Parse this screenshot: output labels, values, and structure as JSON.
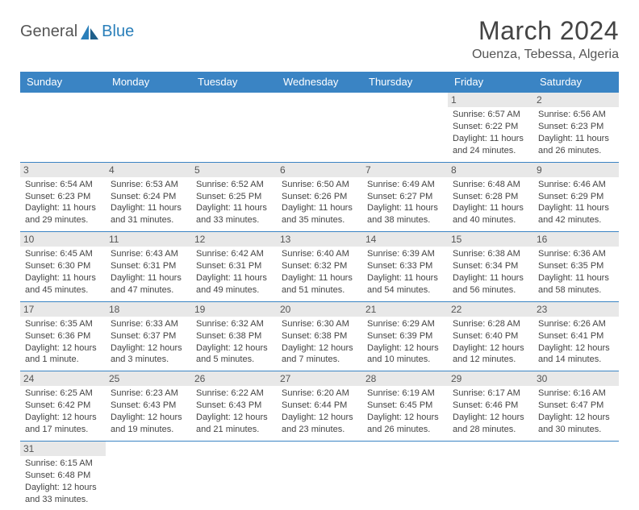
{
  "logo": {
    "general": "General",
    "blue": "Blue"
  },
  "title": "March 2024",
  "location": "Ouenza, Tebessa, Algeria",
  "colors": {
    "header_bg": "#3a84c4",
    "header_text": "#ffffff",
    "border": "#3a84c4",
    "daynum_bg": "#e8e8e8",
    "text": "#444444",
    "logo_general": "#555555",
    "logo_blue": "#2a7fba",
    "background": "#ffffff"
  },
  "weekdays": [
    "Sunday",
    "Monday",
    "Tuesday",
    "Wednesday",
    "Thursday",
    "Friday",
    "Saturday"
  ],
  "weeks": [
    [
      null,
      null,
      null,
      null,
      null,
      {
        "n": "1",
        "sr": "Sunrise: 6:57 AM",
        "ss": "Sunset: 6:22 PM",
        "dl1": "Daylight: 11 hours",
        "dl2": "and 24 minutes."
      },
      {
        "n": "2",
        "sr": "Sunrise: 6:56 AM",
        "ss": "Sunset: 6:23 PM",
        "dl1": "Daylight: 11 hours",
        "dl2": "and 26 minutes."
      }
    ],
    [
      {
        "n": "3",
        "sr": "Sunrise: 6:54 AM",
        "ss": "Sunset: 6:23 PM",
        "dl1": "Daylight: 11 hours",
        "dl2": "and 29 minutes."
      },
      {
        "n": "4",
        "sr": "Sunrise: 6:53 AM",
        "ss": "Sunset: 6:24 PM",
        "dl1": "Daylight: 11 hours",
        "dl2": "and 31 minutes."
      },
      {
        "n": "5",
        "sr": "Sunrise: 6:52 AM",
        "ss": "Sunset: 6:25 PM",
        "dl1": "Daylight: 11 hours",
        "dl2": "and 33 minutes."
      },
      {
        "n": "6",
        "sr": "Sunrise: 6:50 AM",
        "ss": "Sunset: 6:26 PM",
        "dl1": "Daylight: 11 hours",
        "dl2": "and 35 minutes."
      },
      {
        "n": "7",
        "sr": "Sunrise: 6:49 AM",
        "ss": "Sunset: 6:27 PM",
        "dl1": "Daylight: 11 hours",
        "dl2": "and 38 minutes."
      },
      {
        "n": "8",
        "sr": "Sunrise: 6:48 AM",
        "ss": "Sunset: 6:28 PM",
        "dl1": "Daylight: 11 hours",
        "dl2": "and 40 minutes."
      },
      {
        "n": "9",
        "sr": "Sunrise: 6:46 AM",
        "ss": "Sunset: 6:29 PM",
        "dl1": "Daylight: 11 hours",
        "dl2": "and 42 minutes."
      }
    ],
    [
      {
        "n": "10",
        "sr": "Sunrise: 6:45 AM",
        "ss": "Sunset: 6:30 PM",
        "dl1": "Daylight: 11 hours",
        "dl2": "and 45 minutes."
      },
      {
        "n": "11",
        "sr": "Sunrise: 6:43 AM",
        "ss": "Sunset: 6:31 PM",
        "dl1": "Daylight: 11 hours",
        "dl2": "and 47 minutes."
      },
      {
        "n": "12",
        "sr": "Sunrise: 6:42 AM",
        "ss": "Sunset: 6:31 PM",
        "dl1": "Daylight: 11 hours",
        "dl2": "and 49 minutes."
      },
      {
        "n": "13",
        "sr": "Sunrise: 6:40 AM",
        "ss": "Sunset: 6:32 PM",
        "dl1": "Daylight: 11 hours",
        "dl2": "and 51 minutes."
      },
      {
        "n": "14",
        "sr": "Sunrise: 6:39 AM",
        "ss": "Sunset: 6:33 PM",
        "dl1": "Daylight: 11 hours",
        "dl2": "and 54 minutes."
      },
      {
        "n": "15",
        "sr": "Sunrise: 6:38 AM",
        "ss": "Sunset: 6:34 PM",
        "dl1": "Daylight: 11 hours",
        "dl2": "and 56 minutes."
      },
      {
        "n": "16",
        "sr": "Sunrise: 6:36 AM",
        "ss": "Sunset: 6:35 PM",
        "dl1": "Daylight: 11 hours",
        "dl2": "and 58 minutes."
      }
    ],
    [
      {
        "n": "17",
        "sr": "Sunrise: 6:35 AM",
        "ss": "Sunset: 6:36 PM",
        "dl1": "Daylight: 12 hours",
        "dl2": "and 1 minute."
      },
      {
        "n": "18",
        "sr": "Sunrise: 6:33 AM",
        "ss": "Sunset: 6:37 PM",
        "dl1": "Daylight: 12 hours",
        "dl2": "and 3 minutes."
      },
      {
        "n": "19",
        "sr": "Sunrise: 6:32 AM",
        "ss": "Sunset: 6:38 PM",
        "dl1": "Daylight: 12 hours",
        "dl2": "and 5 minutes."
      },
      {
        "n": "20",
        "sr": "Sunrise: 6:30 AM",
        "ss": "Sunset: 6:38 PM",
        "dl1": "Daylight: 12 hours",
        "dl2": "and 7 minutes."
      },
      {
        "n": "21",
        "sr": "Sunrise: 6:29 AM",
        "ss": "Sunset: 6:39 PM",
        "dl1": "Daylight: 12 hours",
        "dl2": "and 10 minutes."
      },
      {
        "n": "22",
        "sr": "Sunrise: 6:28 AM",
        "ss": "Sunset: 6:40 PM",
        "dl1": "Daylight: 12 hours",
        "dl2": "and 12 minutes."
      },
      {
        "n": "23",
        "sr": "Sunrise: 6:26 AM",
        "ss": "Sunset: 6:41 PM",
        "dl1": "Daylight: 12 hours",
        "dl2": "and 14 minutes."
      }
    ],
    [
      {
        "n": "24",
        "sr": "Sunrise: 6:25 AM",
        "ss": "Sunset: 6:42 PM",
        "dl1": "Daylight: 12 hours",
        "dl2": "and 17 minutes."
      },
      {
        "n": "25",
        "sr": "Sunrise: 6:23 AM",
        "ss": "Sunset: 6:43 PM",
        "dl1": "Daylight: 12 hours",
        "dl2": "and 19 minutes."
      },
      {
        "n": "26",
        "sr": "Sunrise: 6:22 AM",
        "ss": "Sunset: 6:43 PM",
        "dl1": "Daylight: 12 hours",
        "dl2": "and 21 minutes."
      },
      {
        "n": "27",
        "sr": "Sunrise: 6:20 AM",
        "ss": "Sunset: 6:44 PM",
        "dl1": "Daylight: 12 hours",
        "dl2": "and 23 minutes."
      },
      {
        "n": "28",
        "sr": "Sunrise: 6:19 AM",
        "ss": "Sunset: 6:45 PM",
        "dl1": "Daylight: 12 hours",
        "dl2": "and 26 minutes."
      },
      {
        "n": "29",
        "sr": "Sunrise: 6:17 AM",
        "ss": "Sunset: 6:46 PM",
        "dl1": "Daylight: 12 hours",
        "dl2": "and 28 minutes."
      },
      {
        "n": "30",
        "sr": "Sunrise: 6:16 AM",
        "ss": "Sunset: 6:47 PM",
        "dl1": "Daylight: 12 hours",
        "dl2": "and 30 minutes."
      }
    ],
    [
      {
        "n": "31",
        "sr": "Sunrise: 6:15 AM",
        "ss": "Sunset: 6:48 PM",
        "dl1": "Daylight: 12 hours",
        "dl2": "and 33 minutes."
      },
      null,
      null,
      null,
      null,
      null,
      null
    ]
  ]
}
